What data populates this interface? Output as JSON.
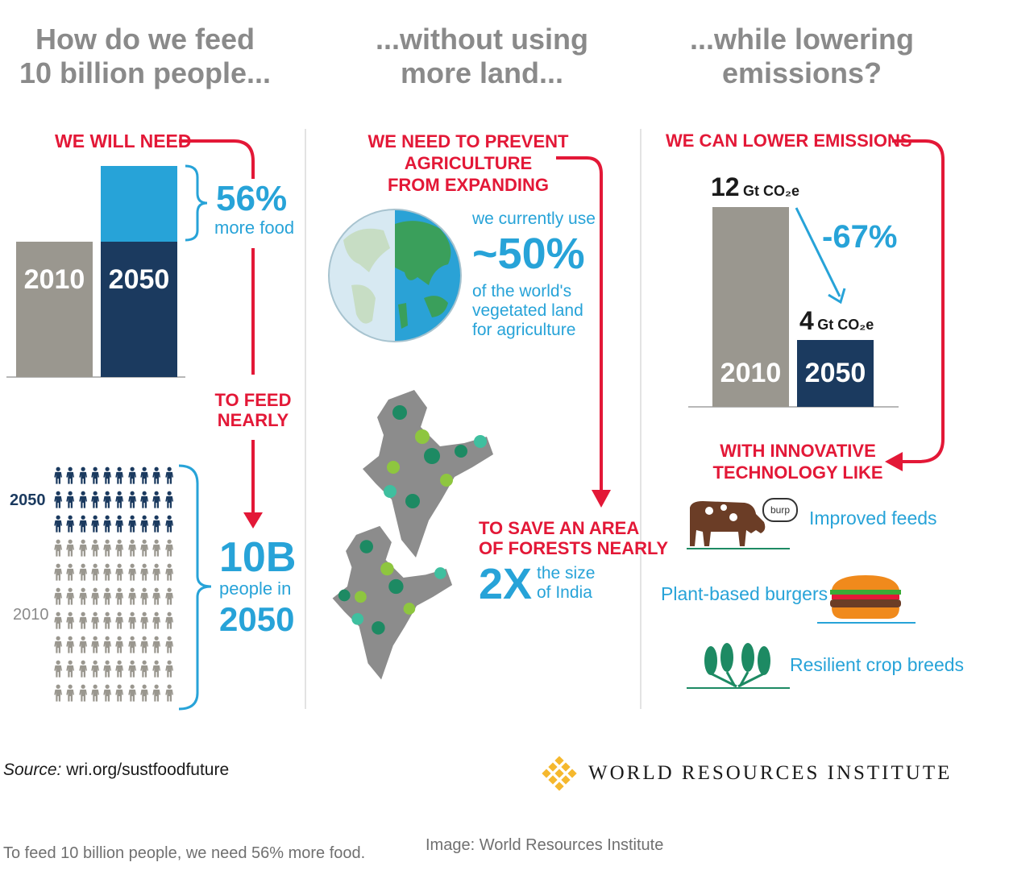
{
  "columns": {
    "col1": {
      "heading_line1": "How do we feed",
      "heading_line2": "10 billion people...",
      "we_will_need": "WE WILL NEED",
      "bar_2010": "2010",
      "bar_2050": "2050",
      "pct": "56%",
      "pct_sub": "more food",
      "to_feed_line1": "TO FEED",
      "to_feed_line2": "NEARLY",
      "people_big": "10B",
      "people_in": "people in",
      "people_year": "2050",
      "rows_label_2050": "2050",
      "rows_label_2010": "2010"
    },
    "col2": {
      "heading_line1": "...without using",
      "heading_line2": "more land...",
      "prevent_line1": "WE NEED TO PREVENT AGRICULTURE",
      "prevent_line2": "FROM EXPANDING",
      "currently_use": "we currently use",
      "pct": "~50%",
      "of_world_line1": "of the world's",
      "of_world_line2": "vegetated land",
      "of_world_line3": "for agriculture",
      "save_line1": "TO SAVE AN AREA",
      "save_line2": "OF FORESTS NEARLY",
      "times": "2X",
      "size_line1": "the size",
      "size_line2": "of India"
    },
    "col3": {
      "heading_line1": "...while lowering",
      "heading_line2": "emissions?",
      "lower": "WE CAN LOWER EMISSIONS",
      "value_2010": "12",
      "value_2050": "4",
      "unit": "Gt CO₂e",
      "change": "-67%",
      "bar_2010": "2010",
      "bar_2050": "2050",
      "innov_line1": "WITH INNOVATIVE",
      "innov_line2": "TECHNOLOGY LIKE",
      "burp": "burp",
      "item1": "Improved feeds",
      "item2": "Plant-based burgers",
      "item3": "Resilient crop breeds"
    }
  },
  "footer": {
    "source_label": "Source:",
    "source_url": "wri.org/sustfoodfuture",
    "org": "WORLD RESOURCES INSTITUTE"
  },
  "caption": {
    "text": "To feed 10 billion people, we need 56% more food.",
    "credit": "Image: World Resources Institute"
  },
  "people_grid": {
    "rows_2050": 3,
    "rows_2010": 7,
    "per_row": 10
  },
  "colors": {
    "red": "#e31837",
    "light_blue": "#27a3d8",
    "navy": "#1b3a5f",
    "gray": "#9a978f",
    "heading_gray": "#8a8a8a"
  }
}
